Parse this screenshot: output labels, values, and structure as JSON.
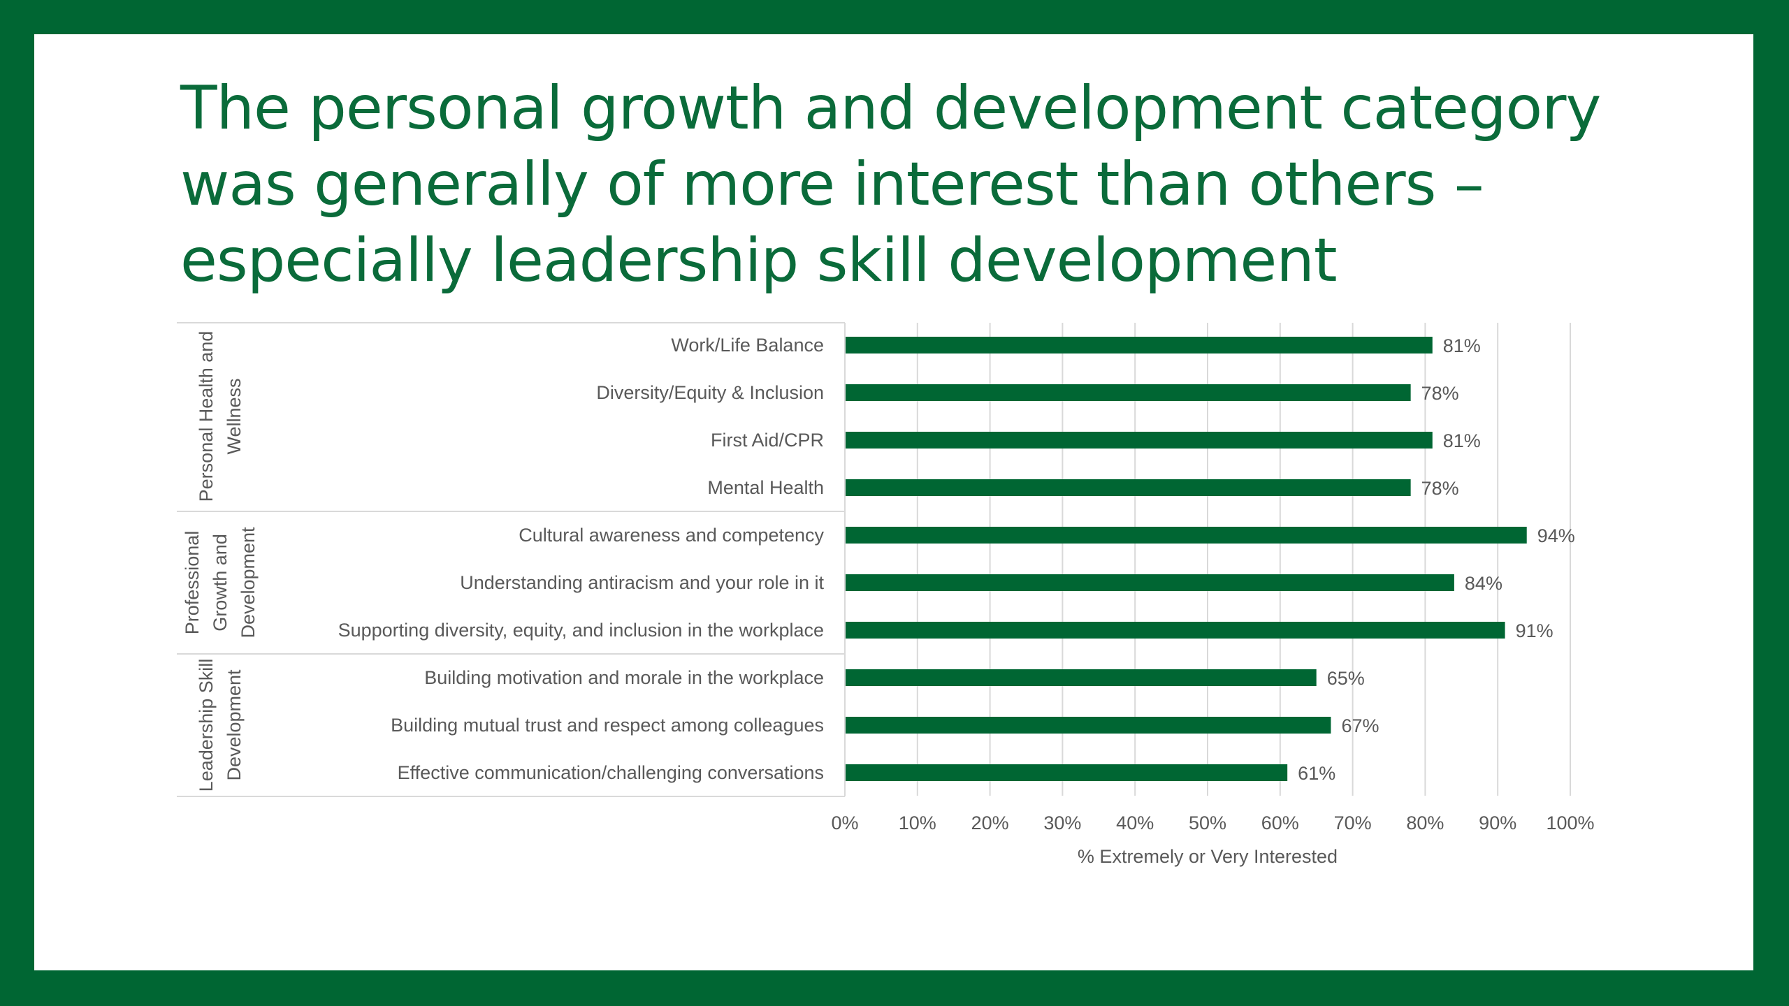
{
  "slide": {
    "title_lines": [
      "The personal growth and development category",
      "was generally of more interest than others –",
      "especially leadership skill development"
    ]
  },
  "colors": {
    "frame": "#006633",
    "bar": "#006633",
    "title": "#0a6b3a",
    "text": "#595959"
  },
  "chart_data": {
    "type": "bar",
    "orientation": "horizontal",
    "title": "",
    "xlabel": "% Extremely or Very Interested",
    "ylabel": "",
    "xlim": [
      0,
      100
    ],
    "x_ticks": [
      "0%",
      "10%",
      "20%",
      "30%",
      "40%",
      "50%",
      "60%",
      "70%",
      "80%",
      "90%",
      "100%"
    ],
    "grid": true,
    "legend": "none",
    "groups": [
      {
        "label_lines": [
          "Personal Health and",
          "Wellness"
        ],
        "categories": [
          "Work/Life Balance",
          "Diversity/Equity & Inclusion",
          "First Aid/CPR",
          "Mental Health"
        ],
        "values": [
          81,
          78,
          81,
          78
        ],
        "value_labels": [
          "81%",
          "78%",
          "81%",
          "78%"
        ]
      },
      {
        "label_lines": [
          "Professional",
          "Growth and",
          "Development"
        ],
        "categories": [
          "Cultural awareness and competency",
          "Understanding antiracism and your role in it",
          "Supporting diversity, equity, and inclusion in the workplace"
        ],
        "values": [
          94,
          84,
          91
        ],
        "value_labels": [
          "94%",
          "84%",
          "91%"
        ]
      },
      {
        "label_lines": [
          "Leadership Skill",
          "Development"
        ],
        "categories": [
          "Building motivation and morale in the workplace",
          "Building mutual trust and respect among colleagues",
          "Effective communication/challenging conversations"
        ],
        "values": [
          65,
          67,
          61
        ],
        "value_labels": [
          "65%",
          "67%",
          "61%"
        ]
      }
    ]
  }
}
